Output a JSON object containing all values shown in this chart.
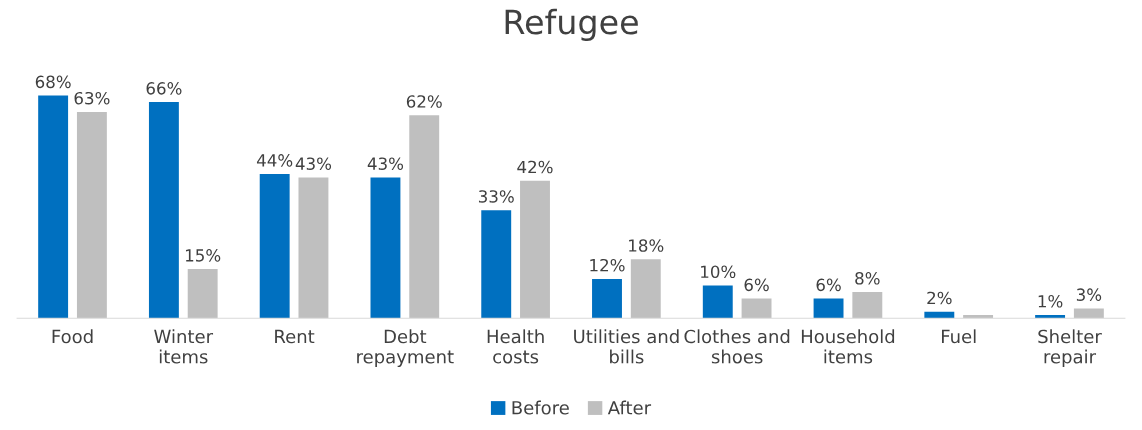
{
  "chart_data": {
    "type": "bar",
    "title": "Refugee",
    "categories": [
      "Food",
      "Winter\nitems",
      "Rent",
      "Debt\nrepayment",
      "Health\ncosts",
      "Utilities and\nbills",
      "Clothes and\nshoes",
      "Household\nitems",
      "Fuel",
      "Shelter\nrepair"
    ],
    "series": [
      {
        "name": "Before",
        "color": "#0070c0",
        "values": [
          68,
          66,
          44,
          43,
          33,
          12,
          10,
          6,
          2,
          1
        ],
        "value_labels": [
          "68%",
          "66%",
          "44%",
          "43%",
          "33%",
          "12%",
          "10%",
          "6%",
          "2%",
          "1%"
        ]
      },
      {
        "name": "After",
        "color": "#bfbfbf",
        "values": [
          63,
          15,
          43,
          62,
          42,
          18,
          6,
          8,
          1,
          3
        ],
        "value_labels": [
          "63%",
          "15%",
          "43%",
          "62%",
          "42%",
          "18%",
          "6%",
          "8%",
          null,
          "3%"
        ]
      }
    ],
    "legend": "bottom",
    "grid": false
  }
}
